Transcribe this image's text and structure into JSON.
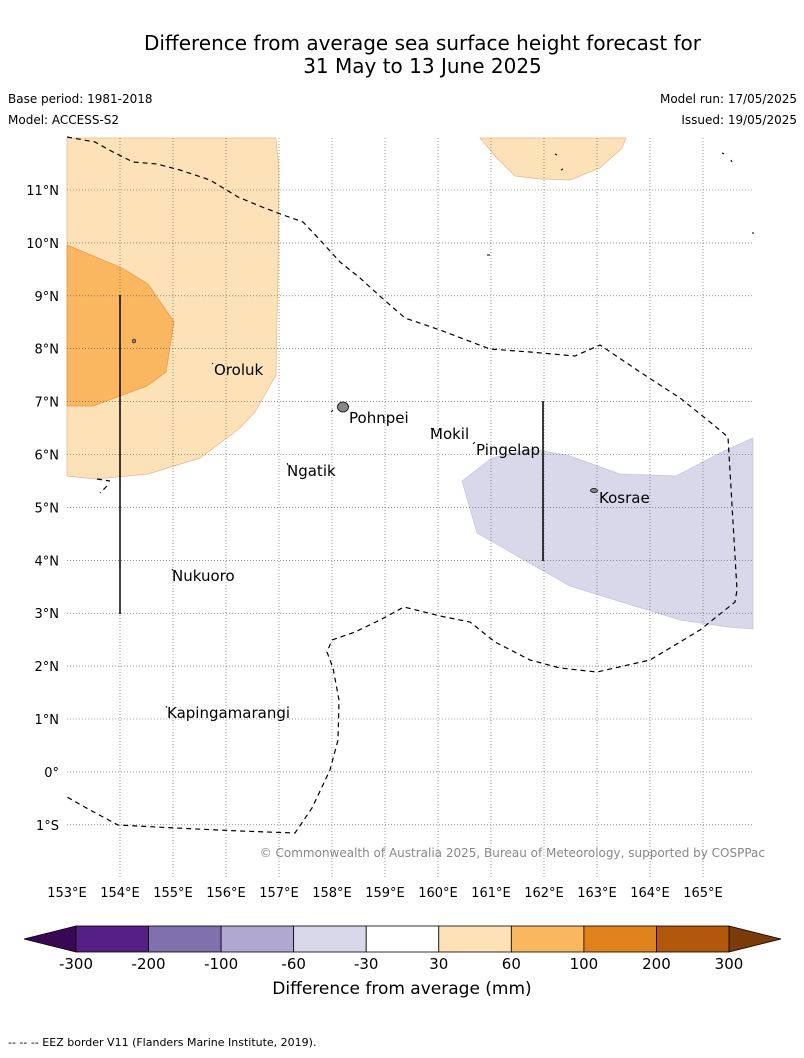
{
  "header": {
    "title_line1": "Difference from average sea surface height forecast for",
    "title_line2": "31 May to 13 June 2025",
    "base_period": "Base period: 1981-2018",
    "model": "Model: ACCESS-S2",
    "model_run": "Model run: 17/05/2025",
    "issued": "Issued: 19/05/2025"
  },
  "map": {
    "lon_labels": [
      "153°E",
      "154°E",
      "155°E",
      "156°E",
      "157°E",
      "158°E",
      "159°E",
      "160°E",
      "161°E",
      "162°E",
      "163°E",
      "164°E",
      "165°E"
    ],
    "lat_labels": [
      "11°N",
      "10°N",
      "9°N",
      "8°N",
      "7°N",
      "6°N",
      "5°N",
      "4°N",
      "3°N",
      "2°N",
      "1°N",
      "0°",
      "1°S"
    ],
    "places": [
      {
        "name": "Oroluk"
      },
      {
        "name": "Pohnpei"
      },
      {
        "name": "Mokil"
      },
      {
        "name": "Pingelap"
      },
      {
        "name": "Ngatik"
      },
      {
        "name": "Kosrae"
      },
      {
        "name": "Nukuoro"
      },
      {
        "name": "Kapingamarangi"
      }
    ],
    "copyright": "© Commonwealth of Australia 2025, Bureau of Meteorology, supported by COSPPac",
    "colors": {
      "land": "#888888",
      "eez": "#000000",
      "grid": "#555555"
    }
  },
  "colorbar": {
    "label": "Difference from average (mm)",
    "ticks": [
      "-300",
      "-200",
      "-100",
      "-60",
      "-30",
      "30",
      "60",
      "100",
      "200",
      "300"
    ],
    "colors": [
      "#551f86",
      "#7f71ae",
      "#b0a8d1",
      "#d8d8ea",
      "#ffffff",
      "#fde1b7",
      "#fbb660",
      "#e1821a",
      "#b3570a"
    ],
    "extend_low": "#3a0757",
    "extend_high": "#7b3b08"
  },
  "footnote": "--  --  -- EEZ border V11 (Flanders Marine Institute, 2019)."
}
